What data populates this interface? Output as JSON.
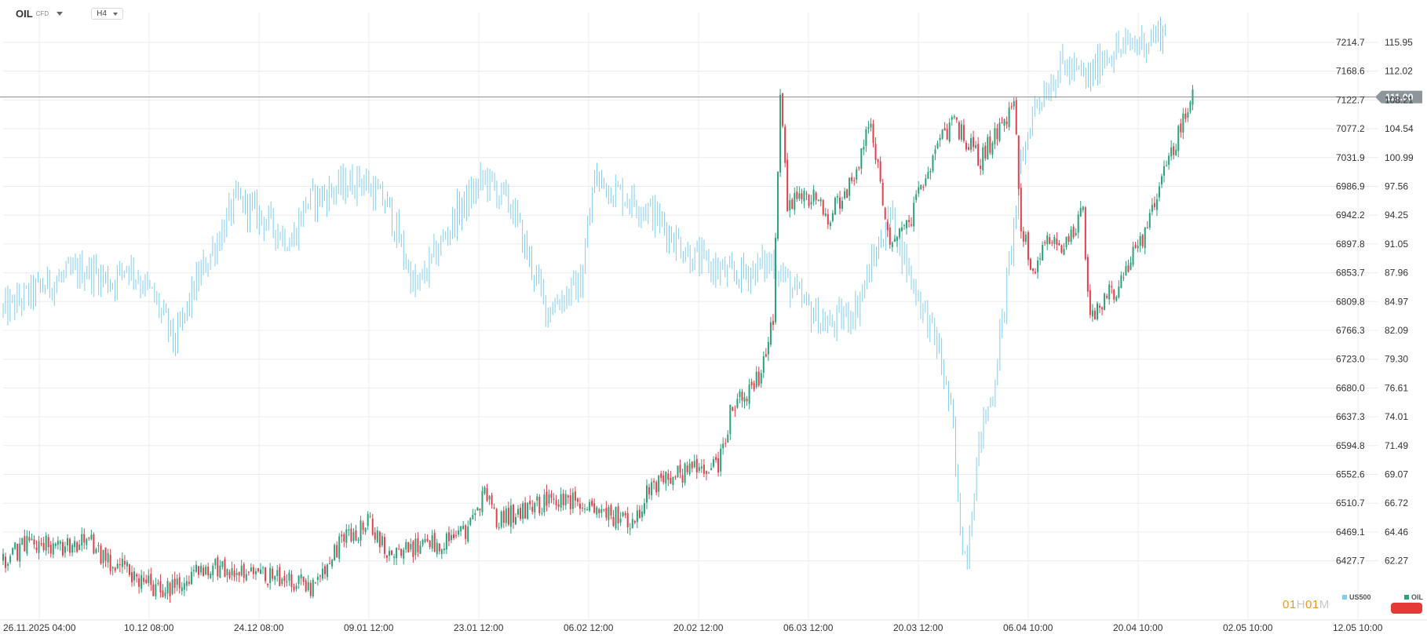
{
  "toolbar": {
    "symbol": "OIL",
    "instrument_type": "CFD",
    "timeframe": "H4"
  },
  "countdown": {
    "hours": "01",
    "hours_unit": "H",
    "minutes": "01",
    "minutes_unit": "M"
  },
  "legend": [
    {
      "name": "US500",
      "color": "#80cff0"
    },
    {
      "name": "OIL",
      "color": "#2aa37a"
    }
  ],
  "colors": {
    "up": "#2aa37a",
    "down": "#e0404a",
    "us500": "#80cff0",
    "crosshair": "#888888",
    "grid": "#ececec",
    "price_tag": "#8d969b"
  },
  "chart_data": {
    "type": "ohlc_comparison",
    "x_ticks": [
      "26.11.2025 04:00",
      "10.12 08:00",
      "24.12 08:00",
      "09.01 12:00",
      "23.01 12:00",
      "06.02 12:00",
      "20.02 12:00",
      "06.03 12:00",
      "20.03 12:00",
      "06.04 10:00",
      "20.04 10:00",
      "02.05 10:00",
      "12.05 10:00"
    ],
    "left_axis_ticks": [
      "7214.7",
      "7168.6",
      "7122.7",
      "7077.2",
      "7031.9",
      "6986.9",
      "6942.2",
      "6897.8",
      "6853.7",
      "6809.8",
      "6766.3",
      "6723.0",
      "6680.0",
      "6637.3",
      "6594.8",
      "6552.6",
      "6510.7",
      "6469.1",
      "6427.7"
    ],
    "right_axis_ticks": [
      "115.95",
      "112.02",
      "108.21",
      "104.54",
      "100.99",
      "97.56",
      "94.25",
      "91.05",
      "87.96",
      "84.97",
      "82.09",
      "79.30",
      "76.61",
      "74.01",
      "71.49",
      "69.07",
      "66.72",
      "64.46",
      "62.27"
    ],
    "current_price": "111.00",
    "series": [
      {
        "name": "US500",
        "style": "bars",
        "axis": "left",
        "ylim": [
          6390,
          7235
        ],
        "keypoints": [
          [
            0,
            6812
          ],
          [
            0.03,
            6848
          ],
          [
            0.06,
            6872
          ],
          [
            0.08,
            6853
          ],
          [
            0.09,
            6880
          ],
          [
            0.11,
            6830
          ],
          [
            0.125,
            6766
          ],
          [
            0.14,
            6850
          ],
          [
            0.17,
            6970
          ],
          [
            0.19,
            6942
          ],
          [
            0.21,
            6910
          ],
          [
            0.22,
            6965
          ],
          [
            0.26,
            7000
          ],
          [
            0.28,
            6960
          ],
          [
            0.3,
            6840
          ],
          [
            0.33,
            6950
          ],
          [
            0.35,
            7000
          ],
          [
            0.37,
            6960
          ],
          [
            0.38,
            6900
          ],
          [
            0.395,
            6815
          ],
          [
            0.42,
            6850
          ],
          [
            0.43,
            7000
          ],
          [
            0.47,
            6955
          ],
          [
            0.5,
            6890
          ],
          [
            0.53,
            6860
          ],
          [
            0.56,
            6882
          ],
          [
            0.58,
            6825
          ],
          [
            0.6,
            6790
          ],
          [
            0.62,
            6815
          ],
          [
            0.645,
            6950
          ],
          [
            0.66,
            6860
          ],
          [
            0.68,
            6760
          ],
          [
            0.69,
            6660
          ],
          [
            0.695,
            6520
          ],
          [
            0.7,
            6460
          ],
          [
            0.71,
            6630
          ],
          [
            0.72,
            6700
          ],
          [
            0.73,
            6850
          ],
          [
            0.74,
            7020
          ],
          [
            0.75,
            7105
          ],
          [
            0.77,
            7160
          ],
          [
            0.79,
            7140
          ],
          [
            0.8,
            7175
          ],
          [
            0.83,
            7195
          ],
          [
            0.845,
            7210
          ]
        ]
      },
      {
        "name": "OIL",
        "style": "candles",
        "axis": "right",
        "ylim": [
          58.3,
          119.7
        ],
        "keypoints": [
          [
            0,
            63.3
          ],
          [
            0.02,
            65.2
          ],
          [
            0.04,
            64.5
          ],
          [
            0.06,
            65.4
          ],
          [
            0.08,
            62.9
          ],
          [
            0.1,
            61.5
          ],
          [
            0.115,
            59.9
          ],
          [
            0.13,
            61.0
          ],
          [
            0.15,
            62.9
          ],
          [
            0.17,
            61.9
          ],
          [
            0.2,
            61.7
          ],
          [
            0.225,
            60.6
          ],
          [
            0.24,
            64.0
          ],
          [
            0.25,
            65.6
          ],
          [
            0.265,
            67.2
          ],
          [
            0.28,
            64.3
          ],
          [
            0.31,
            64.7
          ],
          [
            0.335,
            66.0
          ],
          [
            0.35,
            70.0
          ],
          [
            0.36,
            67.5
          ],
          [
            0.38,
            68.5
          ],
          [
            0.41,
            69.8
          ],
          [
            0.44,
            68.0
          ],
          [
            0.46,
            67.5
          ],
          [
            0.47,
            71.0
          ],
          [
            0.49,
            72.0
          ],
          [
            0.52,
            73.2
          ],
          [
            0.53,
            79.0
          ],
          [
            0.55,
            82.0
          ],
          [
            0.56,
            88.0
          ],
          [
            0.565,
            112.0
          ],
          [
            0.57,
            100.0
          ],
          [
            0.59,
            101.0
          ],
          [
            0.6,
            98.5
          ],
          [
            0.62,
            103.0
          ],
          [
            0.63,
            108.5
          ],
          [
            0.645,
            96.0
          ],
          [
            0.66,
            98.5
          ],
          [
            0.67,
            103.0
          ],
          [
            0.69,
            108.5
          ],
          [
            0.71,
            104.5
          ],
          [
            0.73,
            109.0
          ],
          [
            0.735,
            110.5
          ],
          [
            0.74,
            98.0
          ],
          [
            0.75,
            92.0
          ],
          [
            0.76,
            97.0
          ],
          [
            0.77,
            95.0
          ],
          [
            0.785,
            99.5
          ],
          [
            0.79,
            88.5
          ],
          [
            0.81,
            91.5
          ],
          [
            0.83,
            97.0
          ],
          [
            0.85,
            105.5
          ],
          [
            0.865,
            111.0
          ]
        ]
      }
    ]
  }
}
